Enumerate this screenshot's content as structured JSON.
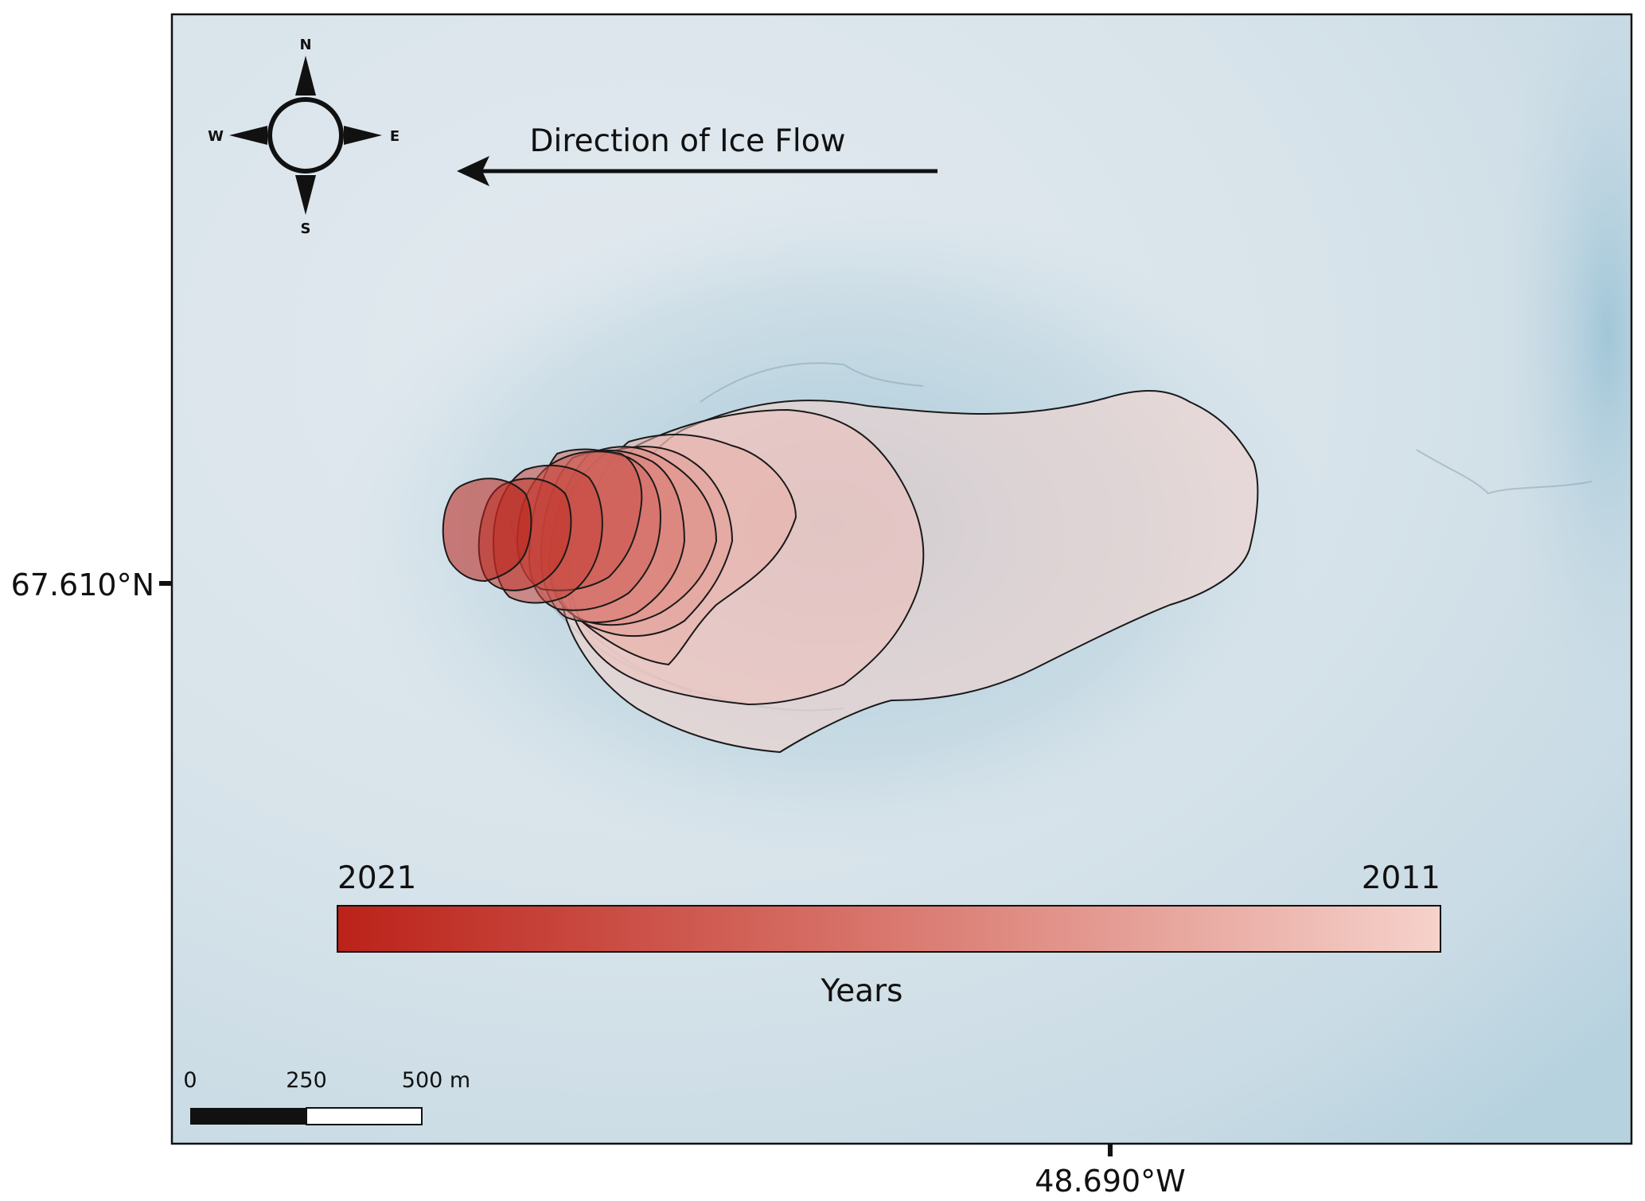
{
  "map": {
    "flow_label": "Direction of Ice Flow",
    "compass": {
      "north": "N",
      "south": "S",
      "east": "E",
      "west": "W"
    },
    "legend": {
      "start_label": "2021",
      "end_label": "2011",
      "title": "Years",
      "color_start": "#bb2219",
      "color_end": "#f5d2cb"
    },
    "scale_bar": {
      "labels": [
        "0",
        "250",
        "500 m"
      ]
    },
    "coordinates": {
      "latitude": "67.610°N",
      "longitude": "48.690°W"
    },
    "colors": {
      "ice_light": "#dde6ec",
      "ice_blue": "#9ec5d6",
      "outline": "#1a1a1a"
    },
    "outline_years": [
      2011,
      2012,
      2013,
      2014,
      2015,
      2016,
      2017,
      2018,
      2019,
      2020,
      2021
    ]
  }
}
